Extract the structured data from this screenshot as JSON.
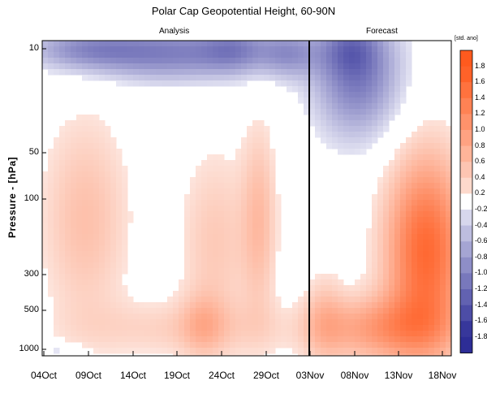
{
  "chart_data": {
    "type": "heatmap",
    "title": "Polar Cap Geopotential Height, 60-90N",
    "panels": [
      "Analysis",
      "Forecast"
    ],
    "ylabel": "Pressure - [hPa]",
    "y_ticks": [
      "10",
      "50",
      "100",
      "300",
      "500",
      "1000"
    ],
    "x_ticks": [
      "04Oct",
      "09Oct",
      "14Oct",
      "19Oct",
      "24Oct",
      "29Oct",
      "03Nov",
      "08Nov",
      "13Nov",
      "18Nov"
    ],
    "colorbar": {
      "title": "[std. ano]",
      "labels": [
        "1.8",
        "1.6",
        "1.4",
        "1.2",
        "1.0",
        "0.8",
        "0.6",
        "0.4",
        "0.2",
        "-0.2",
        "-0.4",
        "-0.6",
        "-0.8",
        "-1.0",
        "-1.2",
        "-1.4",
        "-1.6",
        "-1.8"
      ],
      "positive_color": "#ff5a1e",
      "negative_color": "#2d2d96"
    },
    "grid": false
  }
}
